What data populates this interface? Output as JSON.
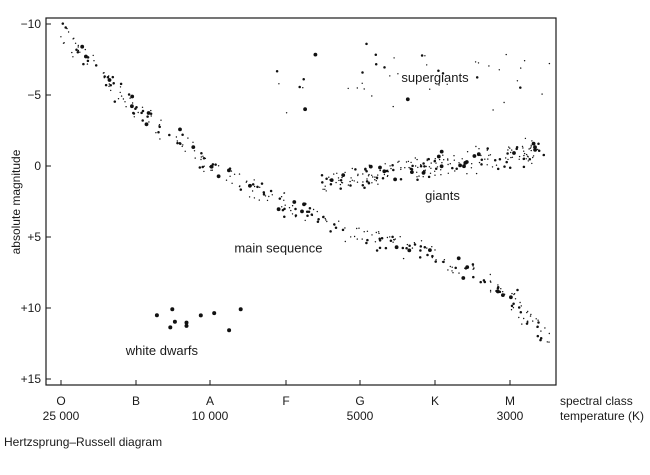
{
  "chart_data": {
    "type": "scatter",
    "title": "",
    "caption": "Hertzsprung–Russell diagram",
    "ylabel": "absolute magnitude",
    "xlabel_line1": "spectral class",
    "xlabel_line2": "temperature (K)",
    "ylim": [
      15,
      -10
    ],
    "y_inverted": true,
    "grid": false,
    "y_ticks": [
      {
        "value": -10,
        "label": "−10"
      },
      {
        "value": -5,
        "label": "−5"
      },
      {
        "value": 0,
        "label": "0"
      },
      {
        "value": 5,
        "label": "+5"
      },
      {
        "value": 10,
        "label": "+10"
      },
      {
        "value": 15,
        "label": "+15"
      }
    ],
    "x_categories": [
      {
        "class": "O",
        "temperature": "25 000"
      },
      {
        "class": "B",
        "temperature": ""
      },
      {
        "class": "A",
        "temperature": "10 000"
      },
      {
        "class": "F",
        "temperature": ""
      },
      {
        "class": "G",
        "temperature": "5000"
      },
      {
        "class": "K",
        "temperature": ""
      },
      {
        "class": "M",
        "temperature": "3000"
      }
    ],
    "annotations": [
      {
        "text": "supergiants",
        "class_position": 5.0,
        "magnitude": -5.9
      },
      {
        "text": "giants",
        "class_position": 5.1,
        "magnitude": 2.4
      },
      {
        "text": "main sequence",
        "class_position": 2.9,
        "magnitude": 6.1
      },
      {
        "text": "white dwarfs",
        "class_position": 1.35,
        "magnitude": 13.3
      }
    ],
    "regions": [
      {
        "name": "main sequence",
        "path": [
          [
            0.0,
            -9.5
          ],
          [
            0.6,
            -6.2
          ],
          [
            1.0,
            -4.0
          ],
          [
            1.4,
            -2.4
          ],
          [
            2.0,
            0.0
          ],
          [
            2.5,
            1.4
          ],
          [
            3.0,
            2.7
          ],
          [
            3.6,
            4.0
          ],
          [
            4.0,
            4.7
          ],
          [
            4.6,
            5.5
          ],
          [
            5.0,
            6.4
          ],
          [
            5.6,
            7.8
          ],
          [
            6.0,
            9.3
          ],
          [
            6.5,
            12.5
          ]
        ],
        "spread": 0.55,
        "count": 330
      },
      {
        "name": "giants",
        "path": [
          [
            3.5,
            1.2
          ],
          [
            4.0,
            0.8
          ],
          [
            4.5,
            0.4
          ],
          [
            5.0,
            0.0
          ],
          [
            5.5,
            -0.4
          ],
          [
            6.0,
            -0.7
          ],
          [
            6.4,
            -0.9
          ]
        ],
        "spread": 0.65,
        "count": 230
      },
      {
        "name": "supergiants",
        "path": [
          [
            2.7,
            -5.0
          ],
          [
            3.5,
            -5.5
          ],
          [
            4.5,
            -6.0
          ],
          [
            5.5,
            -6.5
          ],
          [
            6.4,
            -7.0
          ]
        ],
        "spread": 1.9,
        "count": 45
      },
      {
        "name": "white dwarfs",
        "path": [
          [
            0.7,
            9.8
          ],
          [
            1.2,
            10.3
          ],
          [
            1.6,
            10.6
          ],
          [
            2.0,
            10.9
          ],
          [
            2.5,
            11.3
          ]
        ],
        "spread": 0.75,
        "count": 10
      }
    ]
  }
}
